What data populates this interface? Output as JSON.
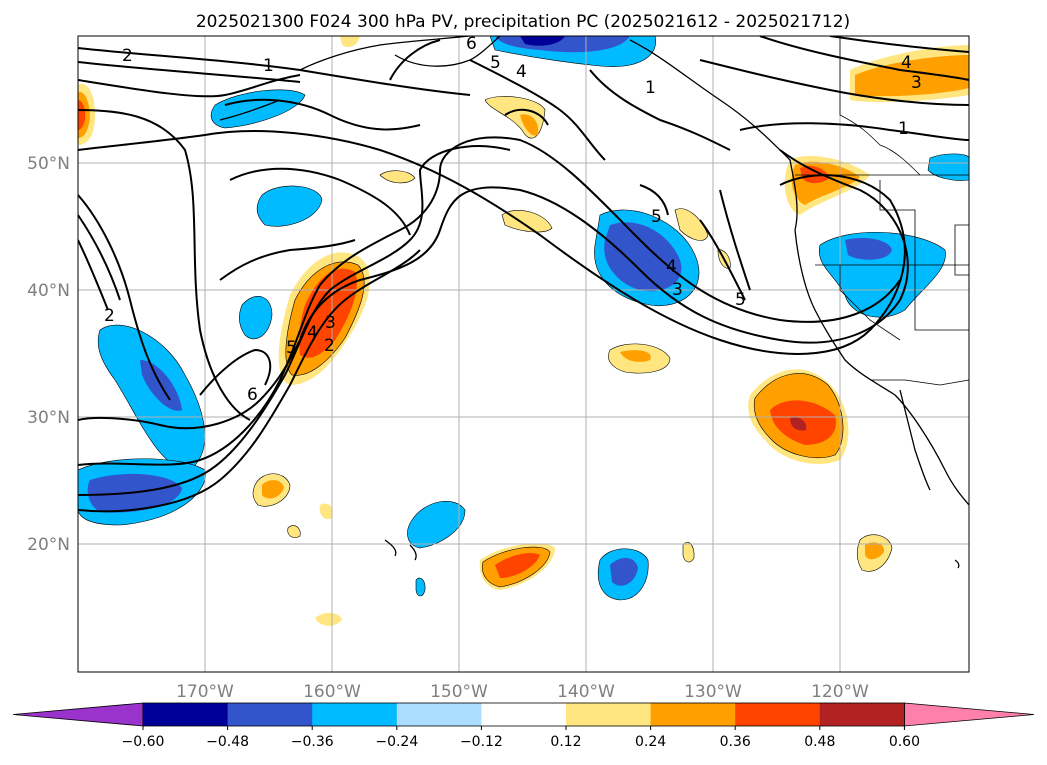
{
  "title": "2025021300 F024 300 hPa PV, precipitation PC (2025021612 - 2025021712)",
  "lat_labels": [
    "50°N",
    "40°N",
    "30°N",
    "20°N"
  ],
  "lon_labels": [
    "170°W",
    "160°W",
    "150°W",
    "140°W",
    "130°W",
    "120°W"
  ],
  "colorbar": {
    "tick_labels": [
      "−0.60",
      "−0.48",
      "−0.36",
      "−0.24",
      "−0.12",
      "0.12",
      "0.24",
      "0.36",
      "0.48",
      "0.60"
    ],
    "colors": [
      "#9933cc",
      "#000099",
      "#3355cc",
      "#00bbff",
      "#aaddff",
      "#ffffff",
      "#ffe680",
      "#ffa000",
      "#ff4400",
      "#b22222",
      "#ff80aa"
    ]
  },
  "contour_labels": [
    "2",
    "1",
    "6",
    "5",
    "4",
    "1",
    "4",
    "3",
    "1",
    "5",
    "4",
    "3",
    "5",
    "2",
    "6",
    "5",
    "4",
    "3",
    "2"
  ]
}
